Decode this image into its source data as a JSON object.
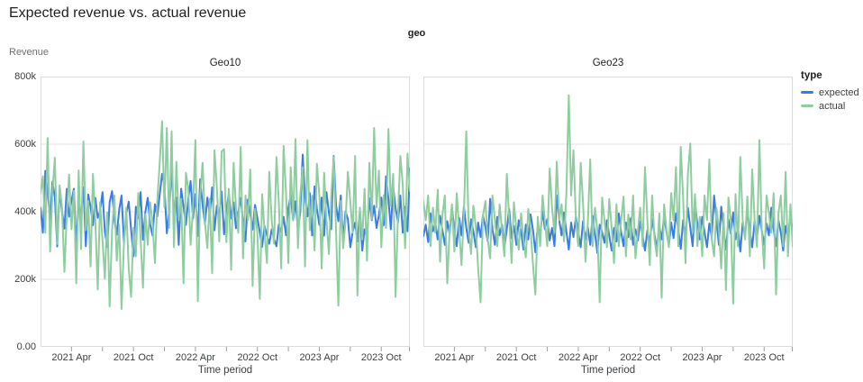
{
  "title": "Expected revenue vs. actual revenue",
  "facet_label": "geo",
  "y_axis_title": "Revenue",
  "x_axis_title": "Time period",
  "legend": {
    "title": "type",
    "items": [
      {
        "label": "expected",
        "color": "#3a7be8"
      },
      {
        "label": "actual",
        "color": "#8fcda0"
      }
    ]
  },
  "colors": {
    "expected": "#3a7be8",
    "actual": "#8fcda0",
    "grid": "#e3e3e3",
    "panel_border": "#dcdcdc",
    "tick": "#9e9e9e",
    "text_dark": "#1f1f1f",
    "text_axis": "#3c4043"
  },
  "chart_data": {
    "type": "line",
    "title": "Expected revenue vs. actual revenue",
    "facet_field": "geo",
    "xlabel": "Time period",
    "ylabel": "Revenue",
    "grid": true,
    "legend_position": "right",
    "x": {
      "start": "2021 Jan",
      "interval": "week",
      "n_points": 156,
      "ticks_labeled": [
        {
          "index": 13,
          "label": "2021 Apr"
        },
        {
          "index": 39,
          "label": "2021 Oct"
        },
        {
          "index": 65,
          "label": "2022 Apr"
        },
        {
          "index": 91,
          "label": "2022 Oct"
        },
        {
          "index": 117,
          "label": "2023 Apr"
        },
        {
          "index": 143,
          "label": "2023 Oct"
        }
      ],
      "ticks_minor": [
        26,
        52,
        78,
        104,
        130,
        155
      ]
    },
    "y": {
      "unit": "thousands",
      "lim": [
        0,
        800
      ],
      "ticks": [
        {
          "value": 800,
          "label": "800k"
        },
        {
          "value": 600,
          "label": "600k"
        },
        {
          "value": 400,
          "label": "400k"
        },
        {
          "value": 200,
          "label": "200k"
        },
        {
          "value": 0,
          "label": "0.00"
        }
      ]
    },
    "facets": [
      {
        "name": "Geo10",
        "series": [
          {
            "name": "expected",
            "color": "#3a7be8",
            "values": [
              412,
              338,
              521,
              458,
              376,
              489,
              443,
              297,
              465,
              402,
              350,
              468,
              385,
              433,
              468,
              305,
              422,
              390,
              472,
              298,
              451,
              415,
              360,
              441,
              382,
              402,
              458,
              342,
              296,
              428,
              461,
              375,
              332,
              406,
              448,
              311,
              394,
              430,
              348,
              268,
              415,
              381,
              458,
              317,
              400,
              441,
              362,
              330,
              422,
              386,
              451,
              512,
              478,
              336,
              405,
              524,
              388,
              442,
              302,
              468,
              415,
              361,
              438,
              491,
              380,
              452,
              328,
              496,
              419,
              365,
              442,
              391,
              472,
              345,
              418,
              386,
              460,
              333,
              404,
              455,
              380,
              428,
              351,
              398,
              441,
              370,
              312,
              436,
              395,
              347,
              420,
              382,
              340,
              296,
              358,
              331,
              305,
              348,
              320,
              298,
              362,
              341,
              385,
              330,
              412,
              448,
              375,
              431,
              348,
              398,
              569,
              442,
              386,
              455,
              330,
              475,
              408,
              361,
              442,
              329,
              458,
              398,
              348,
              565,
              420,
              372,
              448,
              315,
              402,
              378,
              295,
              340,
              368,
              312,
              402,
              285,
              348,
              322,
              440,
              375,
              418,
              352,
              390,
              442,
              360,
              505,
              438,
              348,
              472,
              412,
              368,
              448,
              338,
              415,
              342,
              528
            ]
          },
          {
            "name": "actual",
            "color": "#8fcda0",
            "values": [
              455,
              505,
              338,
              618,
              282,
              458,
              560,
              305,
              478,
              415,
              222,
              388,
              510,
              348,
              462,
              188,
              522,
              290,
              608,
              345,
              432,
              238,
              512,
              375,
              170,
              428,
              315,
              202,
              398,
              120,
              345,
              448,
              255,
              362,
              112,
              305,
              412,
              232,
              148,
              352,
              268,
              455,
              318,
              175,
              392,
              302,
              428,
              368,
              248,
              432,
              545,
              668,
              412,
              648,
              352,
              638,
              295,
              548,
              375,
              438,
              188,
              515,
              468,
              302,
              412,
              612,
              135,
              448,
              545,
              368,
              292,
              438,
              218,
              582,
              475,
              312,
              578,
              585,
              310,
              468,
              228,
              545,
              415,
              338,
              592,
              262,
              448,
              375,
              525,
              180,
              408,
              338,
              142,
              452,
              345,
              248,
              518,
              375,
              305,
              562,
              428,
              232,
              595,
              458,
              248,
              532,
              375,
              615,
              292,
              448,
              532,
              238,
              612,
              345,
              448,
              285,
              542,
              448,
              232,
              515,
              372,
              275,
              448,
              562,
              345,
              122,
              432,
              292,
              372,
              518,
              428,
              338,
              565,
              152,
              412,
              318,
              468,
              255,
              545,
              378,
              648,
              412,
              522,
              295,
              448,
              352,
              645,
              418,
              512,
              148,
              392,
              565,
              482,
              292,
              572,
              462
            ]
          }
        ]
      },
      {
        "name": "Geo23",
        "series": [
          {
            "name": "expected",
            "color": "#3a7be8",
            "values": [
              328,
              362,
              310,
              395,
              342,
              368,
              318,
              388,
              345,
              302,
              372,
              335,
              412,
              348,
              298,
              382,
              330,
              415,
              352,
              308,
              378,
              342,
              295,
              368,
              325,
              390,
              355,
              312,
              438,
              348,
              302,
              385,
              330,
              362,
              295,
              348,
              408,
              322,
              358,
              302,
              375,
              340,
              288,
              362,
              318,
              392,
              345,
              280,
              358,
              330,
              402,
              348,
              378,
              315,
              352,
              298,
              448,
              375,
              330,
              398,
              342,
              288,
              368,
              325,
              385,
              340,
              295,
              372,
              318,
              355,
              302,
              388,
              335,
              278,
              362,
              340,
              308,
              375,
              330,
              285,
              352,
              312,
              395,
              340,
              298,
              368,
              325,
              380,
              302,
              348,
              315,
              372,
              328,
              285,
              345,
              308,
              378,
              332,
              290,
              358,
              318,
              385,
              342,
              300,
              368,
              322,
              395,
              348,
              290,
              375,
              330,
              412,
              352,
              298,
              428,
              362,
              318,
              385,
              340,
              295,
              365,
              325,
              448,
              372,
              302,
              415,
              345,
              288,
              378,
              335,
              398,
              318,
              352,
              282,
              368,
              330,
              405,
              342,
              295,
              372,
              325,
              388,
              345,
              302,
              365,
              330,
              412,
              348,
              298,
              375,
              338,
              285,
              358,
              322,
              392,
              340
            ]
          },
          {
            "name": "actual",
            "color": "#8fcda0",
            "values": [
              432,
              375,
              448,
              298,
              412,
              338,
              465,
              252,
              392,
              448,
              188,
              345,
              422,
              282,
              455,
              348,
              242,
              398,
              638,
              345,
              275,
              418,
              355,
              232,
              132,
              388,
              432,
              318,
              262,
              448,
              375,
              298,
              422,
              345,
              268,
              512,
              382,
              248,
              428,
              345,
              288,
              395,
              318,
              265,
              408,
              348,
              242,
              155,
              385,
              298,
              448,
              372,
              298,
              528,
              412,
              338,
              548,
              375,
              422,
              312,
              452,
              745,
              448,
              582,
              375,
              298,
              545,
              428,
              252,
              362,
              555,
              298,
              412,
              345,
              132,
              442,
              375,
              295,
              438,
              352,
              248,
              422,
              298,
              375,
              445,
              268,
              392,
              318,
              448,
              262,
              345,
              412,
              298,
              532,
              375,
              242,
              448,
              318,
              268,
              395,
              145,
              422,
              348,
              295,
              455,
              375,
              532,
              298,
              592,
              442,
              248,
              512,
              602,
              338,
              452,
              298,
              385,
              268,
              448,
              375,
              555,
              318,
              268,
              412,
              348,
              232,
              395,
              168,
              442,
              375,
              128,
              452,
              298,
              562,
              375,
              318,
              445,
              268,
              525,
              375,
              295,
              612,
              348,
              232,
              448,
              398,
              338,
              455,
              155,
              395,
              448,
              298,
              518,
              268,
              422,
              298
            ]
          }
        ]
      }
    ]
  }
}
